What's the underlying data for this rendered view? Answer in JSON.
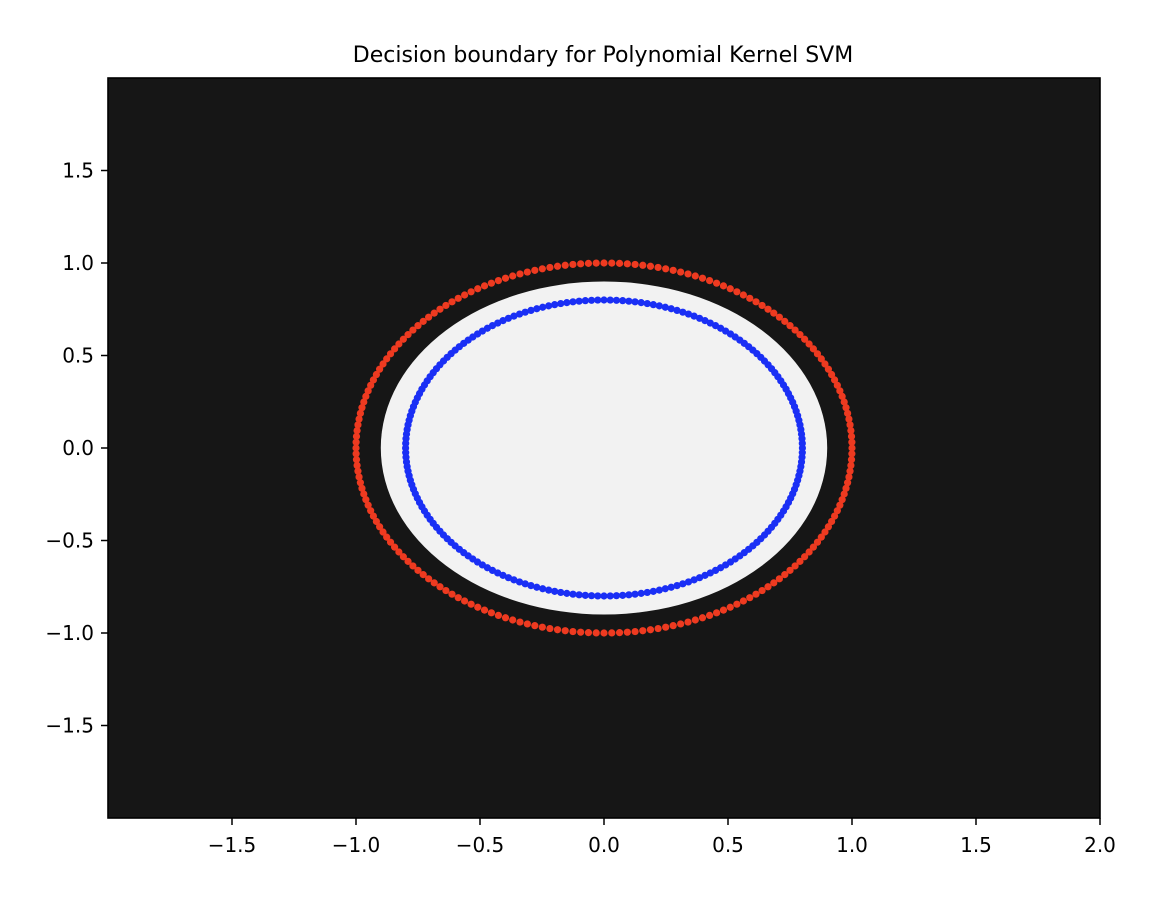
{
  "chart_data": {
    "type": "scatter",
    "title": "Decision boundary for Polynomial Kernel SVM",
    "xlabel": "",
    "ylabel": "",
    "xlim": [
      -2.0,
      2.0
    ],
    "ylim": [
      -2.0,
      2.0
    ],
    "xticks": [
      {
        "value": -1.5,
        "label": "−1.5"
      },
      {
        "value": -1.0,
        "label": "−1.0"
      },
      {
        "value": -0.5,
        "label": "−0.5"
      },
      {
        "value": 0.0,
        "label": "0.0"
      },
      {
        "value": 0.5,
        "label": "0.5"
      },
      {
        "value": 1.0,
        "label": "1.0"
      },
      {
        "value": 1.5,
        "label": "1.5"
      },
      {
        "value": 2.0,
        "label": "2.0"
      }
    ],
    "yticks": [
      {
        "value": 1.5,
        "label": "1.5"
      },
      {
        "value": 1.0,
        "label": "1.0"
      },
      {
        "value": 0.5,
        "label": "0.5"
      },
      {
        "value": 0.0,
        "label": "0.0"
      },
      {
        "value": -0.5,
        "label": "−0.5"
      },
      {
        "value": -1.0,
        "label": "−1.0"
      },
      {
        "value": -1.5,
        "label": "−1.5"
      }
    ],
    "grid": false,
    "decision_regions": {
      "background_color": "#161616",
      "inner_region": {
        "shape": "ellipse",
        "cx": 0.0,
        "cy": 0.0,
        "rx": 0.9,
        "ry": 0.9,
        "color": "#f2f2f2"
      }
    },
    "series": [
      {
        "shape": "circle",
        "radius": 1.0,
        "n_points": 200,
        "color": "#ee3a20"
      },
      {
        "shape": "circle",
        "radius": 0.8,
        "n_points": 200,
        "color": "#1a2ff5"
      }
    ]
  }
}
